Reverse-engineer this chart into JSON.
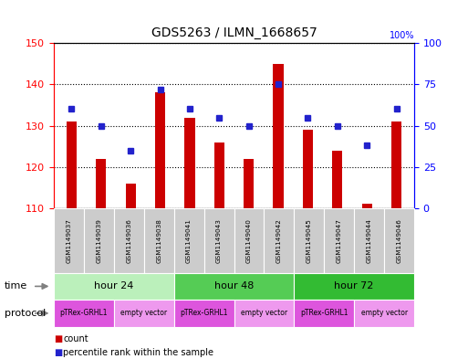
{
  "title": "GDS5263 / ILMN_1668657",
  "samples": [
    "GSM1149037",
    "GSM1149039",
    "GSM1149036",
    "GSM1149038",
    "GSM1149041",
    "GSM1149043",
    "GSM1149040",
    "GSM1149042",
    "GSM1149045",
    "GSM1149047",
    "GSM1149044",
    "GSM1149046"
  ],
  "counts": [
    131,
    122,
    116,
    138,
    132,
    126,
    122,
    145,
    129,
    124,
    111,
    131
  ],
  "percentile_ranks": [
    60,
    50,
    35,
    72,
    60,
    55,
    50,
    75,
    55,
    50,
    38,
    60
  ],
  "ylim_left": [
    110,
    150
  ],
  "ylim_right": [
    0,
    100
  ],
  "yticks_left": [
    110,
    120,
    130,
    140,
    150
  ],
  "yticks_right": [
    0,
    25,
    50,
    75,
    100
  ],
  "bar_color": "#cc0000",
  "dot_color": "#2222cc",
  "bar_baseline": 110,
  "time_groups": [
    {
      "label": "hour 24",
      "start": 0,
      "end": 3,
      "color": "#bbf0bb"
    },
    {
      "label": "hour 48",
      "start": 4,
      "end": 7,
      "color": "#55cc55"
    },
    {
      "label": "hour 72",
      "start": 8,
      "end": 11,
      "color": "#33bb33"
    }
  ],
  "protocol_groups": [
    {
      "label": "pTRex-GRHL1",
      "start": 0,
      "end": 1,
      "color": "#dd55dd"
    },
    {
      "label": "empty vector",
      "start": 2,
      "end": 3,
      "color": "#ee99ee"
    },
    {
      "label": "pTRex-GRHL1",
      "start": 4,
      "end": 5,
      "color": "#dd55dd"
    },
    {
      "label": "empty vector",
      "start": 6,
      "end": 7,
      "color": "#ee99ee"
    },
    {
      "label": "pTRex-GRHL1",
      "start": 8,
      "end": 9,
      "color": "#dd55dd"
    },
    {
      "label": "empty vector",
      "start": 10,
      "end": 11,
      "color": "#ee99ee"
    }
  ],
  "sample_bg_color": "#cccccc",
  "legend_count_color": "#cc0000",
  "legend_dot_color": "#2222cc",
  "bar_width": 0.35
}
